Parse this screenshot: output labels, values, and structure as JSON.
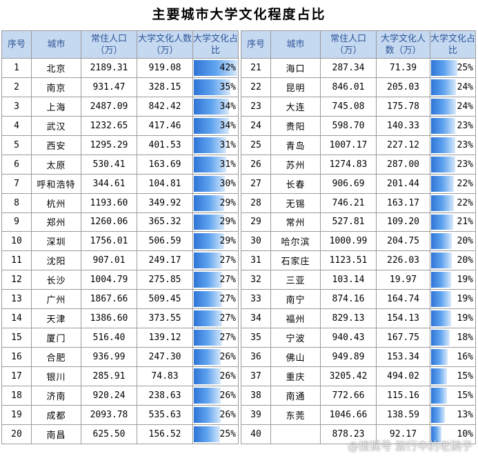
{
  "title": "主要城市大学文化程度占比",
  "headers": {
    "rank": "序号",
    "city": "城市",
    "pop": "常住人口（万）",
    "edu": "大学文化人数（万）",
    "ratio": "大学文化占比"
  },
  "bar_color": "#2e75d6",
  "header_bg": "#c5d9f1",
  "watermark": "@搜狐号 旅行中的老鹅子",
  "rows_left": [
    {
      "rank": "1",
      "city": "北京",
      "pop": "2189.31",
      "edu": "919.08",
      "ratio": "42%",
      "value": 42
    },
    {
      "rank": "2",
      "city": "南京",
      "pop": "931.47",
      "edu": "328.15",
      "ratio": "35%",
      "value": 35
    },
    {
      "rank": "3",
      "city": "上海",
      "pop": "2487.09",
      "edu": "842.42",
      "ratio": "34%",
      "value": 34
    },
    {
      "rank": "4",
      "city": "武汉",
      "pop": "1232.65",
      "edu": "417.46",
      "ratio": "34%",
      "value": 34
    },
    {
      "rank": "5",
      "city": "西安",
      "pop": "1295.29",
      "edu": "401.53",
      "ratio": "31%",
      "value": 31
    },
    {
      "rank": "6",
      "city": "太原",
      "pop": "530.41",
      "edu": "163.69",
      "ratio": "31%",
      "value": 31
    },
    {
      "rank": "7",
      "city": "呼和浩特",
      "pop": "344.61",
      "edu": "104.81",
      "ratio": "30%",
      "value": 30
    },
    {
      "rank": "8",
      "city": "杭州",
      "pop": "1193.60",
      "edu": "349.92",
      "ratio": "29%",
      "value": 29
    },
    {
      "rank": "9",
      "city": "郑州",
      "pop": "1260.06",
      "edu": "365.32",
      "ratio": "29%",
      "value": 29
    },
    {
      "rank": "10",
      "city": "深圳",
      "pop": "1756.01",
      "edu": "506.59",
      "ratio": "29%",
      "value": 29
    },
    {
      "rank": "11",
      "city": "沈阳",
      "pop": "907.01",
      "edu": "249.17",
      "ratio": "27%",
      "value": 27
    },
    {
      "rank": "12",
      "city": "长沙",
      "pop": "1004.79",
      "edu": "275.85",
      "ratio": "27%",
      "value": 27
    },
    {
      "rank": "13",
      "city": "广州",
      "pop": "1867.66",
      "edu": "509.45",
      "ratio": "27%",
      "value": 27
    },
    {
      "rank": "14",
      "city": "天津",
      "pop": "1386.60",
      "edu": "373.55",
      "ratio": "27%",
      "value": 27
    },
    {
      "rank": "15",
      "city": "厦门",
      "pop": "516.40",
      "edu": "139.12",
      "ratio": "27%",
      "value": 27
    },
    {
      "rank": "16",
      "city": "合肥",
      "pop": "936.99",
      "edu": "247.30",
      "ratio": "26%",
      "value": 26
    },
    {
      "rank": "17",
      "city": "银川",
      "pop": "285.91",
      "edu": "74.83",
      "ratio": "26%",
      "value": 26
    },
    {
      "rank": "18",
      "city": "济南",
      "pop": "920.24",
      "edu": "238.63",
      "ratio": "26%",
      "value": 26
    },
    {
      "rank": "19",
      "city": "成都",
      "pop": "2093.78",
      "edu": "535.63",
      "ratio": "26%",
      "value": 26
    },
    {
      "rank": "20",
      "city": "南昌",
      "pop": "625.50",
      "edu": "156.52",
      "ratio": "25%",
      "value": 25
    }
  ],
  "rows_right": [
    {
      "rank": "21",
      "city": "海口",
      "pop": "287.34",
      "edu": "71.39",
      "ratio": "25%",
      "value": 25
    },
    {
      "rank": "22",
      "city": "昆明",
      "pop": "846.01",
      "edu": "205.03",
      "ratio": "24%",
      "value": 24
    },
    {
      "rank": "23",
      "city": "大连",
      "pop": "745.08",
      "edu": "175.78",
      "ratio": "24%",
      "value": 24
    },
    {
      "rank": "24",
      "city": "贵阳",
      "pop": "598.70",
      "edu": "140.33",
      "ratio": "23%",
      "value": 23
    },
    {
      "rank": "25",
      "city": "青岛",
      "pop": "1007.17",
      "edu": "227.12",
      "ratio": "23%",
      "value": 23
    },
    {
      "rank": "26",
      "city": "苏州",
      "pop": "1274.83",
      "edu": "287.00",
      "ratio": "23%",
      "value": 23
    },
    {
      "rank": "27",
      "city": "长春",
      "pop": "906.69",
      "edu": "201.44",
      "ratio": "22%",
      "value": 22
    },
    {
      "rank": "28",
      "city": "无锡",
      "pop": "746.21",
      "edu": "163.17",
      "ratio": "22%",
      "value": 22
    },
    {
      "rank": "29",
      "city": "常州",
      "pop": "527.81",
      "edu": "109.20",
      "ratio": "21%",
      "value": 21
    },
    {
      "rank": "30",
      "city": "哈尔滨",
      "pop": "1000.99",
      "edu": "204.75",
      "ratio": "20%",
      "value": 20
    },
    {
      "rank": "31",
      "city": "石家庄",
      "pop": "1123.51",
      "edu": "226.03",
      "ratio": "20%",
      "value": 20
    },
    {
      "rank": "32",
      "city": "三亚",
      "pop": "103.14",
      "edu": "19.97",
      "ratio": "19%",
      "value": 19
    },
    {
      "rank": "33",
      "city": "南宁",
      "pop": "874.16",
      "edu": "164.74",
      "ratio": "19%",
      "value": 19
    },
    {
      "rank": "34",
      "city": "福州",
      "pop": "829.13",
      "edu": "154.13",
      "ratio": "19%",
      "value": 19
    },
    {
      "rank": "35",
      "city": "宁波",
      "pop": "940.43",
      "edu": "167.75",
      "ratio": "18%",
      "value": 18
    },
    {
      "rank": "36",
      "city": "佛山",
      "pop": "949.89",
      "edu": "153.34",
      "ratio": "16%",
      "value": 16
    },
    {
      "rank": "37",
      "city": "重庆",
      "pop": "3205.42",
      "edu": "494.02",
      "ratio": "15%",
      "value": 15
    },
    {
      "rank": "38",
      "city": "南通",
      "pop": "772.66",
      "edu": "115.16",
      "ratio": "15%",
      "value": 15
    },
    {
      "rank": "39",
      "city": "东莞",
      "pop": "1046.66",
      "edu": "138.59",
      "ratio": "13%",
      "value": 13
    },
    {
      "rank": "40",
      "city": "",
      "pop": "878.23",
      "edu": "92.17",
      "ratio": "10%",
      "value": 10
    }
  ]
}
